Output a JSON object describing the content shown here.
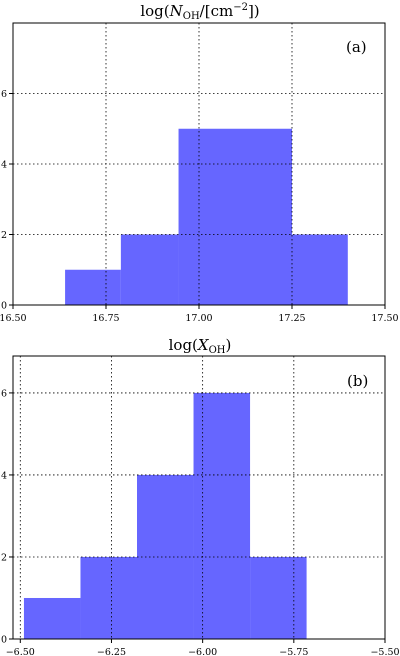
{
  "chart_data": [
    {
      "type": "bar",
      "title": "log(N_OH/[cm^-2])",
      "title_parts": {
        "base": "log(",
        "var": "N",
        "sub": "OH",
        "mid": "/[cm",
        "sup": "−2",
        "end": "])"
      },
      "panel_label": "(a)",
      "bins": [
        {
          "x0": 16.64,
          "x1": 16.79,
          "count": 1
        },
        {
          "x0": 16.79,
          "x1": 16.945,
          "count": 2
        },
        {
          "x0": 16.945,
          "x1": 17.25,
          "count": 5
        },
        {
          "x0": 17.25,
          "x1": 17.4,
          "count": 2
        }
      ],
      "xlim": [
        16.5,
        17.5
      ],
      "ylim": [
        0,
        8
      ],
      "xticks": [
        16.5,
        16.75,
        17.0,
        17.25,
        17.5
      ],
      "xtick_labels": [
        "16.50",
        "16.75",
        "17.00",
        "17.25",
        "17.50"
      ],
      "yticks": [
        0,
        2,
        4,
        6
      ],
      "ytick_labels": [
        "0",
        "2",
        "4",
        "6"
      ],
      "color": "#6666ff",
      "grid": true
    },
    {
      "type": "bar",
      "title": "log(X_OH)",
      "title_parts": {
        "base": "log(",
        "var": "X",
        "sub": "OH",
        "end": ")"
      },
      "panel_label": "(b)",
      "bins": [
        {
          "x0": -6.49,
          "x1": -6.335,
          "count": 1
        },
        {
          "x0": -6.335,
          "x1": -6.18,
          "count": 2
        },
        {
          "x0": -6.18,
          "x1": -6.025,
          "count": 4
        },
        {
          "x0": -6.025,
          "x1": -5.87,
          "count": 6
        },
        {
          "x0": -5.87,
          "x1": -5.715,
          "count": 2
        }
      ],
      "xlim": [
        -6.52,
        -5.5
      ],
      "ylim": [
        0,
        6.9
      ],
      "xticks": [
        -6.5,
        -6.25,
        -6.0,
        -5.75,
        -5.5
      ],
      "xtick_labels": [
        "−6.50",
        "−6.25",
        "−6.00",
        "−5.75",
        "−5.50"
      ],
      "yticks": [
        0,
        2,
        4,
        6
      ],
      "ytick_labels": [
        "0",
        "2",
        "4",
        "6"
      ],
      "color": "#6666ff",
      "grid": true
    }
  ]
}
